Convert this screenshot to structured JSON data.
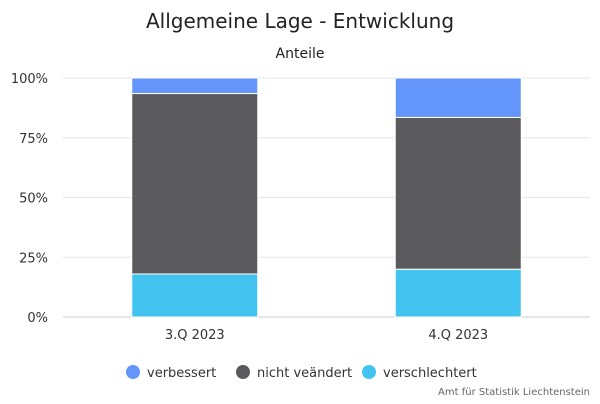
{
  "chart_data": {
    "type": "bar",
    "stacked": true,
    "title": "Allgemeine Lage - Entwicklung",
    "subtitle": "Anteile",
    "categories": [
      "3.Q 2023",
      "4.Q 2023"
    ],
    "series": [
      {
        "name": "verschlechtert",
        "values": [
          18,
          20
        ],
        "color": "#43c4f0"
      },
      {
        "name": "nicht veändert",
        "values": [
          75.5,
          63.5
        ],
        "color": "#5a5a5c"
      },
      {
        "name": "verbessert",
        "values": [
          6.5,
          16.5
        ],
        "color": "#6495fb"
      }
    ],
    "legend_order": [
      "verbessert",
      "nicht veändert",
      "verschlechtert"
    ],
    "ylim": [
      0,
      100
    ],
    "yticks": [
      "0%",
      "25%",
      "50%",
      "75%",
      "100%"
    ],
    "ytick_values": [
      0,
      25,
      50,
      75,
      100
    ],
    "grid": true,
    "legend_position": "bottom",
    "credits": "Amt für Statistik Liechtenstein"
  }
}
